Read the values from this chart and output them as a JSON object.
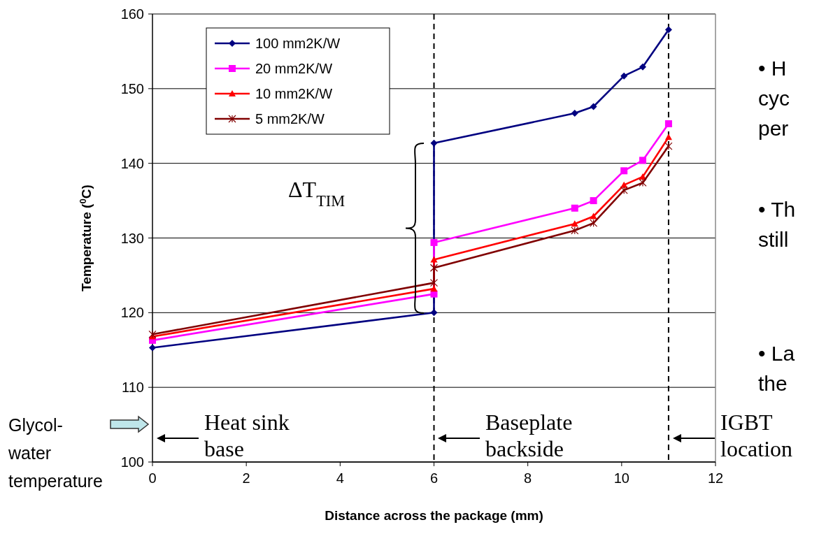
{
  "chart_data": {
    "type": "line",
    "xlabel": "Distance across the package (mm)",
    "ylabel": "Temperature ($^{0}$C)",
    "xlim": [
      0,
      12
    ],
    "xticks": [
      0,
      2,
      4,
      6,
      8,
      10,
      12
    ],
    "ylim": [
      100,
      160
    ],
    "yticks": [
      100,
      110,
      120,
      130,
      140,
      150,
      160
    ],
    "grid": "y",
    "legend": "top left",
    "line_style": "solid",
    "series": [
      {
        "name": "100 mm2K/W",
        "color": "#000080",
        "marker": "diamond",
        "x": [
          0,
          6,
          6,
          9,
          9.4,
          10.05,
          10.45,
          11
        ],
        "values": [
          115.3,
          120.0,
          142.7,
          146.7,
          147.6,
          151.7,
          152.9,
          157.9
        ]
      },
      {
        "name": "20 mm2K/W",
        "color": "#ff00ff",
        "marker": "square",
        "x": [
          0,
          6,
          6,
          9,
          9.4,
          10.05,
          10.45,
          11
        ],
        "values": [
          116.3,
          122.5,
          129.4,
          134.0,
          135.0,
          139.0,
          140.4,
          145.3
        ]
      },
      {
        "name": "10 mm2K/W",
        "color": "#ff0000",
        "marker": "triangle",
        "x": [
          0,
          6,
          6,
          9,
          9.4,
          10.05,
          10.45,
          11
        ],
        "values": [
          116.8,
          123.2,
          127.1,
          131.9,
          132.9,
          137.1,
          138.2,
          143.5
        ]
      },
      {
        "name": "5 mm2K/W",
        "color": "#800000",
        "marker": "cross",
        "x": [
          0,
          6,
          6,
          9,
          9.4,
          10.05,
          10.45,
          11
        ],
        "values": [
          117.1,
          124.0,
          126.0,
          131.0,
          132.0,
          136.4,
          137.4,
          142.3
        ]
      }
    ],
    "ref_lines": [
      {
        "axis": "x",
        "value": 6,
        "line_style": "dashed",
        "color": "#000000"
      },
      {
        "axis": "x",
        "value": 11,
        "line_style": "dashed",
        "color": "#000000"
      }
    ],
    "annotations": [
      "ΔT$_{TIM}$",
      "Heat sink\nbase",
      "Baseplate\nbackside",
      "IGBT\nlocation",
      "Glycol-\nwater\ntemperature",
      "• H",
      "cyc",
      "per",
      "• Th",
      "still",
      "• La",
      "the"
    ]
  }
}
